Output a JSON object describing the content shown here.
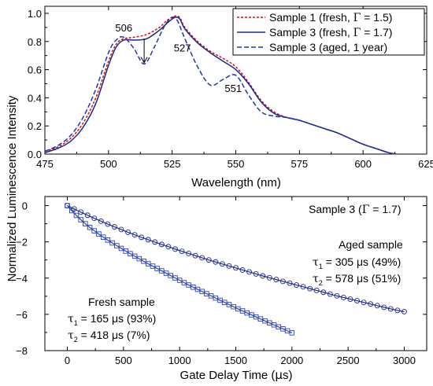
{
  "figure": {
    "shared_ylabel": "Normalized Luminescence Intensity"
  },
  "chart_data": [
    {
      "type": "line",
      "xlabel": "Wavelength (nm)",
      "ylabel": "",
      "xlim": [
        475,
        625
      ],
      "ylim": [
        0,
        1.05
      ],
      "xticks": [
        "475",
        "500",
        "525",
        "550",
        "575",
        "600",
        "625"
      ],
      "yticks": [
        "0.0",
        "0.2",
        "0.4",
        "0.6",
        "0.8",
        "1.0"
      ],
      "legend_position": "top-right",
      "legend": [
        {
          "pre": "Sample 1 (fresh, ",
          "sym": "Γ",
          "post": " = 1.5)"
        },
        {
          "pre": "Sample 3 (fresh, ",
          "sym": "Γ",
          "post": " = 1.7)"
        },
        {
          "pre": "Sample 3 (aged, 1 year)",
          "sym": "",
          "post": ""
        }
      ],
      "series": [
        {
          "name": "Sample 1 (fresh, Γ = 1.5)",
          "color": "#cc1111",
          "dash": "3,2",
          "x": [
            475,
            480,
            485,
            490,
            495,
            500,
            503,
            506,
            510,
            515,
            520,
            523,
            526,
            528,
            530,
            535,
            540,
            545,
            550,
            555,
            560,
            565,
            570,
            575,
            580,
            585,
            590,
            595,
            600,
            605,
            610,
            613
          ],
          "y": [
            0.02,
            0.05,
            0.11,
            0.22,
            0.4,
            0.66,
            0.78,
            0.82,
            0.83,
            0.85,
            0.9,
            0.95,
            0.98,
            0.97,
            0.9,
            0.8,
            0.73,
            0.68,
            0.62,
            0.51,
            0.38,
            0.3,
            0.26,
            0.24,
            0.21,
            0.18,
            0.15,
            0.11,
            0.07,
            0.04,
            0.01,
            0.0
          ]
        },
        {
          "name": "Sample 3 (fresh, Γ = 1.7)",
          "color": "#1a2a8a",
          "dash": "",
          "x": [
            475,
            480,
            485,
            490,
            495,
            500,
            503,
            506,
            510,
            515,
            520,
            523,
            526,
            528,
            530,
            535,
            540,
            545,
            550,
            555,
            560,
            565,
            570,
            575,
            580,
            585,
            590,
            595,
            600,
            605,
            610,
            613
          ],
          "y": [
            0.01,
            0.04,
            0.09,
            0.19,
            0.36,
            0.63,
            0.76,
            0.81,
            0.81,
            0.82,
            0.88,
            0.93,
            0.97,
            0.96,
            0.89,
            0.79,
            0.72,
            0.66,
            0.6,
            0.5,
            0.37,
            0.29,
            0.26,
            0.24,
            0.21,
            0.18,
            0.15,
            0.11,
            0.07,
            0.04,
            0.01,
            0.0
          ]
        },
        {
          "name": "Sample 3 (aged, 1 year)",
          "color": "#2233aa",
          "dash": "6,3",
          "x": [
            475,
            480,
            485,
            490,
            495,
            500,
            503,
            506,
            510,
            514,
            518,
            522,
            525,
            527,
            530,
            535,
            540,
            545,
            550,
            555,
            560,
            565,
            570,
            575,
            580,
            585,
            590,
            595,
            600,
            605,
            610,
            613
          ],
          "y": [
            0.02,
            0.06,
            0.13,
            0.26,
            0.46,
            0.72,
            0.81,
            0.83,
            0.75,
            0.64,
            0.76,
            0.91,
            0.97,
            0.95,
            0.82,
            0.62,
            0.49,
            0.53,
            0.56,
            0.42,
            0.3,
            0.27,
            0.26,
            0.24,
            0.21,
            0.18,
            0.15,
            0.11,
            0.07,
            0.04,
            0.01,
            0.0
          ]
        }
      ],
      "annotations": [
        {
          "text": "506",
          "x": 506,
          "y": 0.87
        },
        {
          "text": "527",
          "x": 529,
          "y": 0.73
        },
        {
          "text": "551",
          "x": 549,
          "y": 0.44
        }
      ],
      "arrow": {
        "x": 514,
        "y_from": 0.82,
        "y_to": 0.65
      }
    },
    {
      "type": "scatter",
      "xlabel_pre": "Gate Delay Time (",
      "xlabel_sym": "μ",
      "xlabel_post": "s)",
      "ylabel": "",
      "xlim": [
        -200,
        3200
      ],
      "ylim": [
        -8,
        0.5
      ],
      "xticks": [
        0,
        500,
        1000,
        1500,
        2000,
        2500,
        3000
      ],
      "yticks": [
        0,
        -2,
        -4,
        -6,
        -8
      ],
      "sample_label": {
        "pre": "Sample 3 (",
        "sym": "Γ",
        "post": " = 1.7)"
      },
      "series": [
        {
          "name": "Aged sample",
          "marker": "circle",
          "color": "#1a2a8a",
          "x": [
            0,
            60,
            120,
            180,
            240,
            300,
            360,
            420,
            480,
            540,
            600,
            660,
            720,
            780,
            840,
            900,
            960,
            1020,
            1080,
            1140,
            1200,
            1260,
            1320,
            1380,
            1440,
            1500,
            1560,
            1620,
            1680,
            1740,
            1800,
            1860,
            1920,
            1980,
            2040,
            2100,
            2160,
            2220,
            2280,
            2340,
            2400,
            2460,
            2520,
            2580,
            2640,
            2700,
            2760,
            2820,
            2880,
            2940,
            3000
          ],
          "y": [
            0.0,
            -0.18,
            -0.36,
            -0.53,
            -0.7,
            -0.86,
            -1.02,
            -1.17,
            -1.32,
            -1.47,
            -1.61,
            -1.75,
            -1.88,
            -2.01,
            -2.14,
            -2.27,
            -2.4,
            -2.52,
            -2.64,
            -2.76,
            -2.88,
            -3.0,
            -3.11,
            -3.22,
            -3.33,
            -3.44,
            -3.55,
            -3.66,
            -3.77,
            -3.88,
            -3.98,
            -4.08,
            -4.18,
            -4.28,
            -4.38,
            -4.48,
            -4.58,
            -4.68,
            -4.78,
            -4.88,
            -4.98,
            -5.07,
            -5.16,
            -5.25,
            -5.34,
            -5.43,
            -5.52,
            -5.61,
            -5.7,
            -5.78,
            -5.85
          ]
        },
        {
          "name": "Fresh sample",
          "marker": "square",
          "color": "#2a3fb0",
          "x": [
            0,
            40,
            80,
            120,
            160,
            200,
            240,
            280,
            320,
            360,
            400,
            440,
            480,
            520,
            560,
            600,
            640,
            680,
            720,
            760,
            800,
            840,
            880,
            920,
            960,
            1000,
            1040,
            1080,
            1120,
            1160,
            1200,
            1240,
            1280,
            1320,
            1360,
            1400,
            1440,
            1480,
            1520,
            1560,
            1600,
            1640,
            1680,
            1720,
            1760,
            1800,
            1840,
            1880,
            1920,
            1960,
            2000
          ],
          "y": [
            0.0,
            -0.28,
            -0.54,
            -0.78,
            -1.0,
            -1.2,
            -1.39,
            -1.57,
            -1.74,
            -1.9,
            -2.06,
            -2.21,
            -2.36,
            -2.51,
            -2.65,
            -2.79,
            -2.93,
            -3.07,
            -3.21,
            -3.34,
            -3.47,
            -3.6,
            -3.73,
            -3.86,
            -3.99,
            -4.12,
            -4.25,
            -4.38,
            -4.5,
            -4.62,
            -4.74,
            -4.86,
            -4.98,
            -5.1,
            -5.22,
            -5.34,
            -5.46,
            -5.58,
            -5.7,
            -5.81,
            -5.92,
            -6.03,
            -6.14,
            -6.25,
            -6.36,
            -6.47,
            -6.58,
            -6.69,
            -6.8,
            -6.91,
            -7.02
          ]
        }
      ],
      "aged_text": {
        "title": "Aged sample",
        "t1_val": " = 305 μs (49%)",
        "t2_val": " = 578 μs (51%)"
      },
      "fresh_text": {
        "title": "Fresh sample",
        "t1_val": " = 165 μs (93%)",
        "t2_val": " = 418 μs (7%)"
      },
      "tau_symbol": "τ",
      "sub1": "1",
      "sub2": "2"
    }
  ]
}
